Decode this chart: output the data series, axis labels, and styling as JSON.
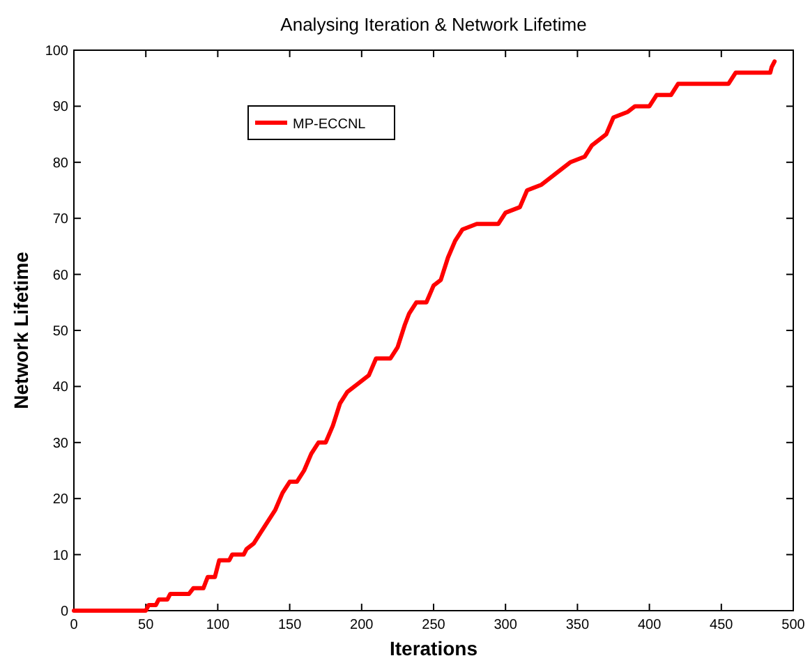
{
  "chart_data": {
    "type": "line",
    "title": "Analysing Iteration & Network Lifetime",
    "xlabel": "Iterations",
    "ylabel": "Network Lifetime",
    "xlim": [
      0,
      500
    ],
    "ylim": [
      0,
      100
    ],
    "xticks": [
      0,
      50,
      100,
      150,
      200,
      250,
      300,
      350,
      400,
      450,
      500
    ],
    "yticks": [
      0,
      10,
      20,
      30,
      40,
      50,
      60,
      70,
      80,
      90,
      100
    ],
    "grid": false,
    "legend": "top left",
    "line_style": "solid",
    "marker": "none",
    "series": [
      {
        "name": "MP-ECCNL",
        "color": "#ff0000",
        "x": [
          0,
          50,
          52,
          57,
          59,
          65,
          67,
          80,
          83,
          90,
          93,
          98,
          101,
          108,
          110,
          118,
          120,
          125,
          130,
          135,
          140,
          145,
          150,
          155,
          160,
          165,
          170,
          175,
          180,
          185,
          190,
          195,
          200,
          205,
          210,
          220,
          225,
          230,
          233,
          238,
          245,
          250,
          255,
          260,
          265,
          270,
          280,
          295,
          300,
          310,
          315,
          325,
          335,
          345,
          355,
          360,
          370,
          375,
          385,
          390,
          400,
          405,
          415,
          420,
          455,
          460,
          484,
          485,
          487
        ],
        "values": [
          0,
          0,
          1,
          1,
          2,
          2,
          3,
          3,
          4,
          4,
          6,
          6,
          9,
          9,
          10,
          10,
          11,
          12,
          14,
          16,
          18,
          21,
          23,
          23,
          25,
          28,
          30,
          30,
          33,
          37,
          39,
          40,
          41,
          42,
          45,
          45,
          47,
          51,
          53,
          55,
          55,
          58,
          59,
          63,
          66,
          68,
          69,
          69,
          71,
          72,
          75,
          76,
          78,
          80,
          81,
          83,
          85,
          88,
          89,
          90,
          90,
          92,
          92,
          94,
          94,
          96,
          96,
          97,
          98
        ]
      }
    ]
  }
}
